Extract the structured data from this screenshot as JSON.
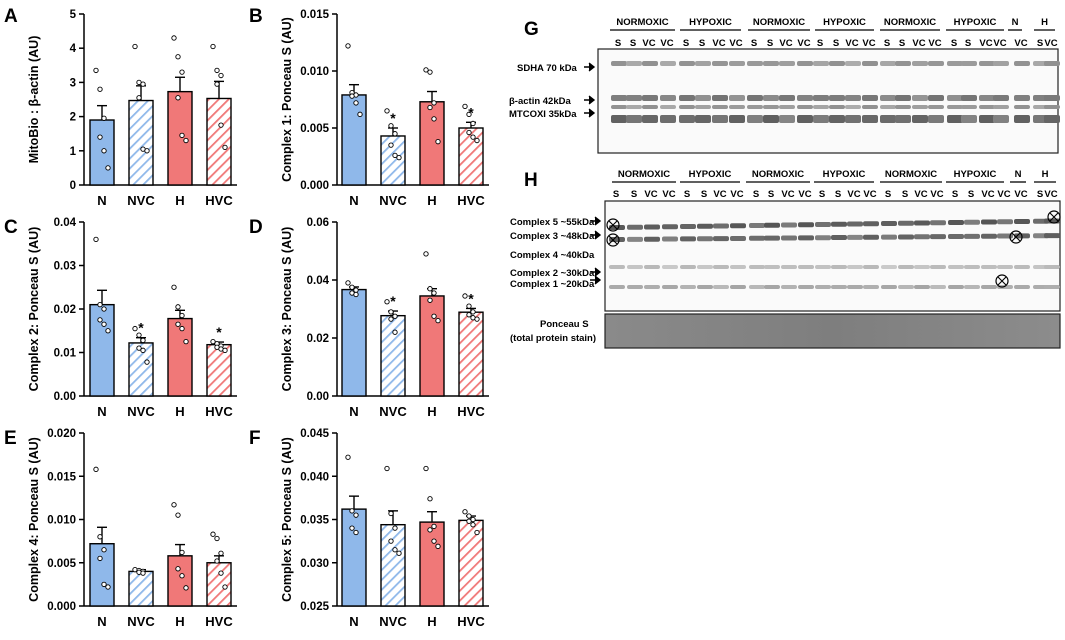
{
  "colors": {
    "blue": "#8fb8ea",
    "red": "#f07878",
    "blue_hatch": "#8fb8ea",
    "red_hatch": "#f07878"
  },
  "chart_data": [
    {
      "panel": "A",
      "type": "bar",
      "ylabel": "MitoBio : β-actin (AU)",
      "categories": [
        "N",
        "NVC",
        "H",
        "HVC"
      ],
      "values": [
        1.9,
        2.47,
        2.73,
        2.53
      ],
      "sem": [
        0.42,
        0.43,
        0.42,
        0.5
      ],
      "points": [
        [
          3.35,
          2.8,
          1.95,
          1.4,
          1.0,
          0.5
        ],
        [
          4.05,
          3.0,
          2.95,
          2.55,
          1.05,
          1.0
        ],
        [
          4.3,
          3.75,
          3.3,
          2.55,
          1.45,
          1.3
        ],
        [
          4.05,
          3.35,
          3.2,
          2.95,
          1.75,
          1.1
        ]
      ],
      "ylim": [
        0,
        5
      ],
      "yticks": [
        "0",
        "1",
        "2",
        "3",
        "4",
        "5"
      ],
      "sig": []
    },
    {
      "panel": "B",
      "type": "bar",
      "ylabel": "Complex 1: Ponceau S (AU)",
      "categories": [
        "N",
        "NVC",
        "H",
        "HVC"
      ],
      "values": [
        0.0079,
        0.0043,
        0.0073,
        0.005
      ],
      "sem": [
        0.0009,
        0.0007,
        0.0009,
        0.0005
      ],
      "points": [
        [
          0.0122,
          0.0081,
          0.0079,
          0.0078,
          0.0072,
          0.0062
        ],
        [
          0.0065,
          0.0052,
          0.0045,
          0.0035,
          0.0026,
          0.0024
        ],
        [
          0.0101,
          0.0099,
          0.0072,
          0.0068,
          0.0058,
          0.0038
        ],
        [
          0.0069,
          0.0062,
          0.0054,
          0.0046,
          0.0042,
          0.0039
        ]
      ],
      "ylim": [
        0,
        0.015
      ],
      "yticks": [
        "0.000",
        "0.005",
        "0.010",
        "0.015"
      ],
      "sig": [
        "",
        "*",
        "",
        "*"
      ]
    },
    {
      "panel": "C",
      "type": "bar",
      "ylabel": "Complex 2: Ponceau S (AU)",
      "categories": [
        "N",
        "NVC",
        "H",
        "HVC"
      ],
      "values": [
        0.021,
        0.0122,
        0.0178,
        0.0118
      ],
      "sem": [
        0.0033,
        0.0012,
        0.0019,
        0.0006
      ],
      "points": [
        [
          0.036,
          0.021,
          0.02,
          0.0175,
          0.0165,
          0.015
        ],
        [
          0.0155,
          0.014,
          0.0128,
          0.011,
          0.0105,
          0.0078
        ],
        [
          0.025,
          0.0205,
          0.0185,
          0.0165,
          0.0155,
          0.0125
        ],
        [
          0.0125,
          0.012,
          0.0115,
          0.0112,
          0.0108,
          0.0105
        ]
      ],
      "ylim": [
        0,
        0.04
      ],
      "yticks": [
        "0.00",
        "0.01",
        "0.02",
        "0.03",
        "0.04"
      ],
      "sig": [
        "",
        "*",
        "",
        "*"
      ]
    },
    {
      "panel": "D",
      "type": "bar",
      "ylabel": "Complex 3: Ponceau S (AU)",
      "categories": [
        "N",
        "NVC",
        "H",
        "HVC"
      ],
      "values": [
        0.0367,
        0.0277,
        0.0345,
        0.0289
      ],
      "sem": [
        0.0009,
        0.0016,
        0.0025,
        0.0013
      ],
      "points": [
        [
          0.039,
          0.0375,
          0.0365,
          0.0355,
          0.035
        ],
        [
          0.0325,
          0.029,
          0.0275,
          0.0265,
          0.022
        ],
        [
          0.049,
          0.037,
          0.0355,
          0.033,
          0.0275,
          0.026
        ],
        [
          0.0345,
          0.031,
          0.029,
          0.028,
          0.027,
          0.0265
        ]
      ],
      "ylim": [
        0,
        0.06
      ],
      "yticks": [
        "0.00",
        "0.02",
        "0.04",
        "0.06"
      ],
      "sig": [
        "",
        "*",
        "",
        "*"
      ]
    },
    {
      "panel": "E",
      "type": "bar",
      "ylabel": "Complex 4: Ponceau S (AU)",
      "categories": [
        "N",
        "NVC",
        "H",
        "HVC"
      ],
      "values": [
        0.0072,
        0.004,
        0.0058,
        0.005
      ],
      "sem": [
        0.0019,
        0.0002,
        0.0013,
        0.0008
      ],
      "points": [
        [
          0.0158,
          0.008,
          0.0065,
          0.0055,
          0.0025,
          0.0022
        ],
        [
          0.0042,
          0.0041,
          0.004,
          0.0039,
          0.0038
        ],
        [
          0.0117,
          0.0105,
          0.0062,
          0.0043,
          0.0035,
          0.0021
        ],
        [
          0.0083,
          0.0078,
          0.0061,
          0.0052,
          0.0038,
          0.0022
        ]
      ],
      "ylim": [
        0,
        0.02
      ],
      "yticks": [
        "0.000",
        "0.005",
        "0.010",
        "0.015",
        "0.020"
      ],
      "sig": []
    },
    {
      "panel": "F",
      "type": "bar",
      "ylabel": "Complex 5: Ponceau S (AU)",
      "categories": [
        "N",
        "NVC",
        "H",
        "HVC"
      ],
      "values": [
        0.0362,
        0.0344,
        0.0347,
        0.0349
      ],
      "sem": [
        0.0015,
        0.0016,
        0.0012,
        0.0005
      ],
      "points": [
        [
          0.0422,
          0.036,
          0.0355,
          0.034,
          0.0335
        ],
        [
          0.0409,
          0.0357,
          0.034,
          0.0325,
          0.0315,
          0.0311
        ],
        [
          0.0409,
          0.0374,
          0.0342,
          0.0338,
          0.0325,
          0.0319
        ],
        [
          0.0359,
          0.0354,
          0.035,
          0.0348,
          0.0344,
          0.0335
        ]
      ],
      "ylim": [
        0.025,
        0.045
      ],
      "yticks": [
        "0.025",
        "0.030",
        "0.035",
        "0.040",
        "0.045"
      ],
      "sig": []
    }
  ],
  "blots": {
    "G": {
      "label": "G",
      "groups": [
        "NORMOXIC",
        "HYPOXIC",
        "NORMOXIC",
        "HYPOXIC",
        "NORMOXIC",
        "HYPOXIC",
        "N",
        "H"
      ],
      "lanes": [
        "S",
        "S",
        "VC",
        "VC",
        "S",
        "S",
        "VC",
        "VC",
        "S",
        "S",
        "VC",
        "VC",
        "S",
        "S",
        "VC",
        "VC",
        "S",
        "S",
        "VC",
        "VC",
        "S",
        "S",
        "VC",
        "VC",
        "VC",
        "S",
        "VC"
      ],
      "markers": [
        "SDHA 70 kDa",
        "β-actin 42kDa",
        "MTCOXI 35kDa"
      ]
    },
    "H": {
      "label": "H",
      "groups": [
        "NORMOXIC",
        "HYPOXIC",
        "NORMOXIC",
        "HYPOXIC",
        "NORMOXIC",
        "HYPOXIC",
        "N",
        "H"
      ],
      "lanes": [
        "S",
        "S",
        "VC",
        "VC",
        "S",
        "S",
        "VC",
        "VC",
        "S",
        "S",
        "VC",
        "VC",
        "S",
        "S",
        "VC",
        "VC",
        "S",
        "S",
        "VC",
        "VC",
        "S",
        "S",
        "VC",
        "VC",
        "VC",
        "S",
        "VC"
      ],
      "markers": [
        "Complex 5 ~55kDa",
        "Complex 3 ~48kDa",
        "Complex 4 ~40kDa",
        "Complex 2 ~30kDa",
        "Complex 1 ~20kDa"
      ],
      "ponceau": [
        "Ponceau S",
        "(total protein stain)"
      ]
    }
  }
}
